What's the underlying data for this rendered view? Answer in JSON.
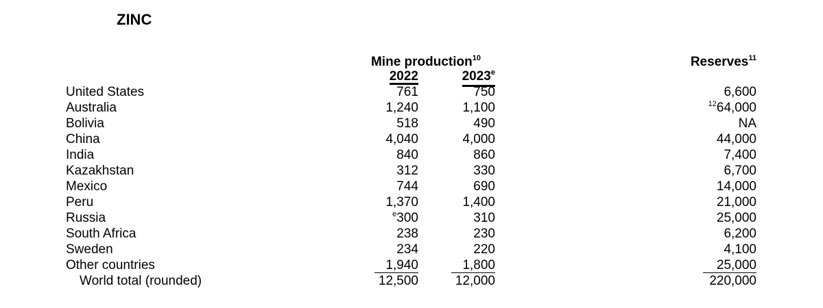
{
  "title": "ZINC",
  "table": {
    "group_header": {
      "text": "Mine production",
      "note": "10"
    },
    "years": [
      {
        "text": "2022"
      },
      {
        "text": "2023",
        "note": "e"
      }
    ],
    "reserves_header": {
      "text": "Reserves",
      "note": "11"
    },
    "rows": [
      [
        "United States",
        "761",
        "750",
        "6,600"
      ],
      [
        "Australia",
        "1,240",
        "1,100",
        {
          "note": "12",
          "text": "64,000"
        }
      ],
      [
        "Bolivia",
        "518",
        "490",
        "NA"
      ],
      [
        "China",
        "4,040",
        "4,000",
        "44,000"
      ],
      [
        "India",
        "840",
        "860",
        "7,400"
      ],
      [
        "Kazakhstan",
        "312",
        "330",
        "6,700"
      ],
      [
        "Mexico",
        "744",
        "690",
        "14,000"
      ],
      [
        "Peru",
        "1,370",
        "1,400",
        "21,000"
      ],
      [
        "Russia",
        {
          "note": "e",
          "text": "300"
        },
        "310",
        "25,000"
      ],
      [
        "South Africa",
        "238",
        "230",
        "6,200"
      ],
      [
        "Sweden",
        "234",
        "220",
        "4,100"
      ],
      [
        "Other countries",
        "1,940",
        "1,800",
        "25,000"
      ],
      [
        "World total (rounded)",
        "12,500",
        "12,000",
        "220,000"
      ]
    ]
  }
}
